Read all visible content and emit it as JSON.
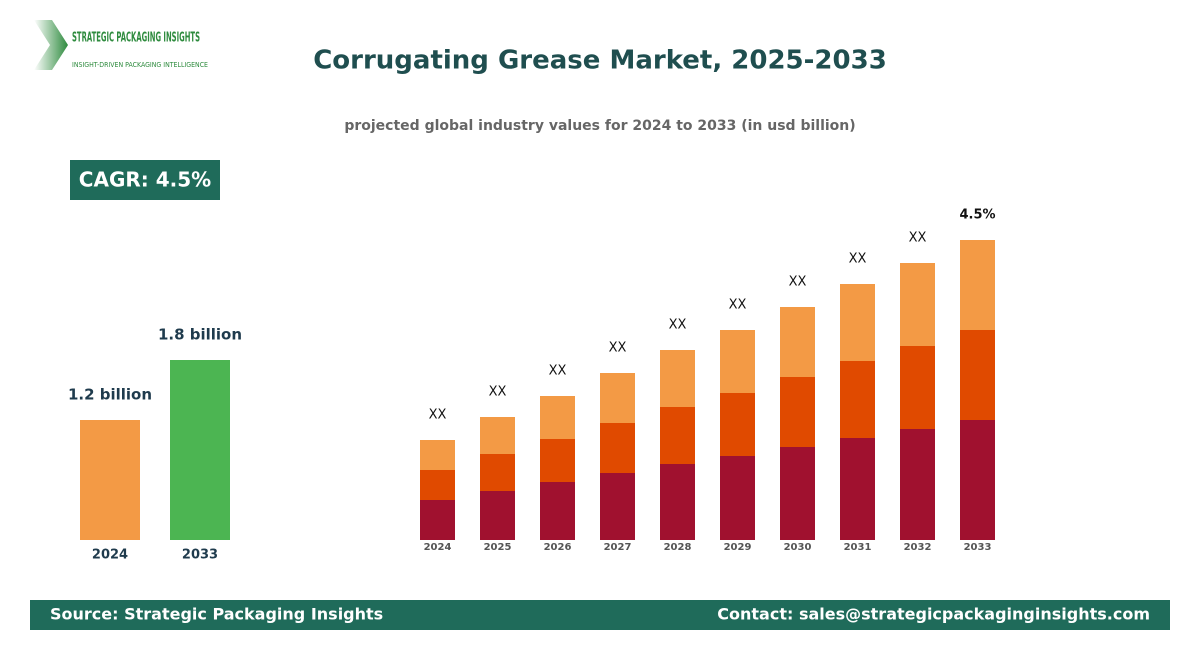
{
  "header": {
    "logo_name": "STRATEGIC PACKAGING INSIGHTS",
    "logo_tagline": "INSIGHT-DRIVEN PACKAGING INTELLIGENCE",
    "title": "Corrugating Grease Market, 2025-2033",
    "subtitle": "projected global industry values for 2024 to 2033 (in usd billion)",
    "badge": "CAGR: 4.5%"
  },
  "chart_data": [
    {
      "type": "bar",
      "categories": [
        "2024",
        "2033"
      ],
      "values": [
        1.2,
        1.8
      ],
      "value_labels": [
        "1.2 billion",
        "1.8 billion"
      ],
      "colors": [
        "#f39a45",
        "#4cb552"
      ],
      "ylim": [
        0,
        1.8
      ]
    },
    {
      "type": "stacked_bar",
      "categories": [
        "2024",
        "2025",
        "2026",
        "2027",
        "2028",
        "2029",
        "2030",
        "2031",
        "2032",
        "2033"
      ],
      "series": [
        {
          "color": "#a0112f",
          "values": [
            40,
            49,
            58,
            67,
            76,
            84,
            93,
            102,
            111,
            120
          ]
        },
        {
          "color": "#e04a00",
          "values": [
            30,
            37,
            43,
            50,
            57,
            63,
            70,
            77,
            83,
            90
          ]
        },
        {
          "color": "#f39a45",
          "values": [
            30,
            37,
            43,
            50,
            57,
            63,
            70,
            77,
            83,
            90
          ]
        }
      ],
      "top_labels": [
        "XX",
        "XX",
        "XX",
        "XX",
        "XX",
        "XX",
        "XX",
        "XX",
        "XX",
        "4.5%"
      ],
      "ylim": [
        0,
        300
      ]
    }
  ],
  "footer": {
    "source": "Source: Strategic Packaging Insights",
    "contact": "Contact: sales@strategicpackaginginsights.com"
  }
}
